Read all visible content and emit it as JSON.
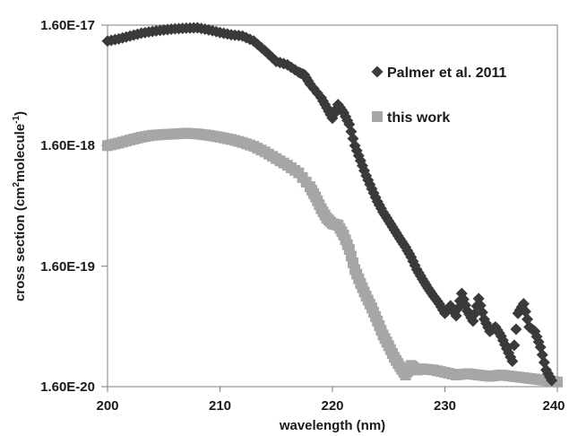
{
  "chart_data": {
    "type": "scatter",
    "xlabel": "wavelength (nm)",
    "ylabel_main": "cross section (cm",
    "ylabel_sup1": "2",
    "ylabel_mid": "molecule",
    "ylabel_sup2": "-1",
    "ylabel_end": ")",
    "x_ticks": [
      "200",
      "210",
      "220",
      "230",
      "240"
    ],
    "y_ticks": [
      "1.60E-17",
      "1.60E-18",
      "1.60E-19",
      "1.60E-20"
    ],
    "xlim": [
      200,
      240
    ],
    "ylim": [
      1.6e-20,
      1.6e-17
    ],
    "y_scale": "log",
    "legend_position": "top-right",
    "series": [
      {
        "name": "Palmer et al. 2011",
        "marker": "diamond",
        "color": "#3a3a3a",
        "points": [
          [
            200.0,
            1.18e-17
          ],
          [
            201.0,
            1.23e-17
          ],
          [
            202.0,
            1.3e-17
          ],
          [
            203.0,
            1.37e-17
          ],
          [
            204.0,
            1.42e-17
          ],
          [
            205.0,
            1.46e-17
          ],
          [
            206.0,
            1.49e-17
          ],
          [
            207.0,
            1.51e-17
          ],
          [
            208.0,
            1.52e-17
          ],
          [
            209.0,
            1.46e-17
          ],
          [
            210.0,
            1.39e-17
          ],
          [
            211.0,
            1.33e-17
          ],
          [
            212.0,
            1.3e-17
          ],
          [
            213.0,
            1.18e-17
          ],
          [
            214.0,
            9.8e-18
          ],
          [
            215.0,
            8e-18
          ],
          [
            216.0,
            7.5e-18
          ],
          [
            217.0,
            6.5e-18
          ],
          [
            217.5,
            6.2e-18
          ],
          [
            218.0,
            5.2e-18
          ],
          [
            219.0,
            4e-18
          ],
          [
            219.5,
            3.3e-18
          ],
          [
            220.0,
            2.7e-18
          ],
          [
            220.5,
            3.5e-18
          ],
          [
            221.0,
            3e-18
          ],
          [
            221.5,
            2.4e-18
          ],
          [
            222.0,
            1.6e-18
          ],
          [
            222.5,
            1.2e-18
          ],
          [
            223.0,
            9e-19
          ],
          [
            223.5,
            7e-19
          ],
          [
            224.0,
            5.5e-19
          ],
          [
            224.5,
            4.5e-19
          ],
          [
            225.0,
            3.8e-19
          ],
          [
            225.5,
            3.2e-19
          ],
          [
            226.0,
            2.7e-19
          ],
          [
            226.5,
            2.3e-19
          ],
          [
            227.0,
            1.9e-19
          ],
          [
            227.5,
            1.5e-19
          ],
          [
            228.0,
            1.25e-19
          ],
          [
            228.5,
            1.05e-19
          ],
          [
            229.0,
            9e-20
          ],
          [
            229.5,
            7.8e-20
          ],
          [
            230.0,
            6.5e-20
          ],
          [
            230.5,
            7.5e-20
          ],
          [
            231.0,
            6.2e-20
          ],
          [
            231.5,
            9.5e-20
          ],
          [
            232.0,
            6.8e-20
          ],
          [
            232.5,
            5.6e-20
          ],
          [
            233.0,
            8.6e-20
          ],
          [
            233.5,
            5.8e-20
          ],
          [
            234.0,
            4.6e-20
          ],
          [
            234.5,
            5e-20
          ],
          [
            235.0,
            4.2e-20
          ],
          [
            235.5,
            3.3e-20
          ],
          [
            236.0,
            2.6e-20
          ],
          [
            236.5,
            6.5e-20
          ],
          [
            237.0,
            7.8e-20
          ],
          [
            237.5,
            5e-20
          ],
          [
            238.0,
            4.6e-20
          ],
          [
            238.5,
            3.4e-20
          ],
          [
            239.0,
            2.2e-20
          ],
          [
            239.5,
            1.8e-20
          ]
        ]
      },
      {
        "name": "this work",
        "marker": "square",
        "color": "#a6a6a6",
        "points": [
          [
            200.0,
            1.6e-18
          ],
          [
            201.0,
            1.68e-18
          ],
          [
            202.0,
            1.78e-18
          ],
          [
            203.0,
            1.88e-18
          ],
          [
            204.0,
            1.95e-18
          ],
          [
            205.0,
            1.98e-18
          ],
          [
            206.0,
            2e-18
          ],
          [
            207.0,
            2.03e-18
          ],
          [
            208.0,
            2e-18
          ],
          [
            209.0,
            1.95e-18
          ],
          [
            210.0,
            1.88e-18
          ],
          [
            211.0,
            1.8e-18
          ],
          [
            212.0,
            1.7e-18
          ],
          [
            213.0,
            1.58e-18
          ],
          [
            214.0,
            1.42e-18
          ],
          [
            215.0,
            1.25e-18
          ],
          [
            216.0,
            1.1e-18
          ],
          [
            217.0,
            9.5e-19
          ],
          [
            218.0,
            7.3e-19
          ],
          [
            218.5,
            6e-19
          ],
          [
            219.0,
            4.8e-19
          ],
          [
            219.5,
            4e-19
          ],
          [
            220.0,
            3.6e-19
          ],
          [
            220.5,
            3.5e-19
          ],
          [
            221.0,
            2.9e-19
          ],
          [
            221.5,
            2.2e-19
          ],
          [
            222.0,
            1.5e-19
          ],
          [
            222.5,
            1.15e-19
          ],
          [
            223.0,
            9e-20
          ],
          [
            223.5,
            7.2e-20
          ],
          [
            224.0,
            5.6e-20
          ],
          [
            224.5,
            4.3e-20
          ],
          [
            225.0,
            3.5e-20
          ],
          [
            225.5,
            2.8e-20
          ],
          [
            226.0,
            2.35e-20
          ],
          [
            226.5,
            2e-20
          ],
          [
            227.0,
            2.4e-20
          ],
          [
            227.5,
            2.2e-20
          ],
          [
            228.0,
            2.25e-20
          ],
          [
            229.0,
            2.2e-20
          ],
          [
            230.0,
            2.1e-20
          ],
          [
            231.0,
            2e-20
          ],
          [
            232.0,
            2.05e-20
          ],
          [
            233.0,
            2e-20
          ],
          [
            234.0,
            1.95e-20
          ],
          [
            235.0,
            2e-20
          ],
          [
            236.0,
            1.95e-20
          ],
          [
            237.0,
            1.9e-20
          ],
          [
            238.0,
            1.85e-20
          ],
          [
            239.0,
            1.8e-20
          ],
          [
            240.0,
            1.75e-20
          ]
        ]
      }
    ]
  }
}
